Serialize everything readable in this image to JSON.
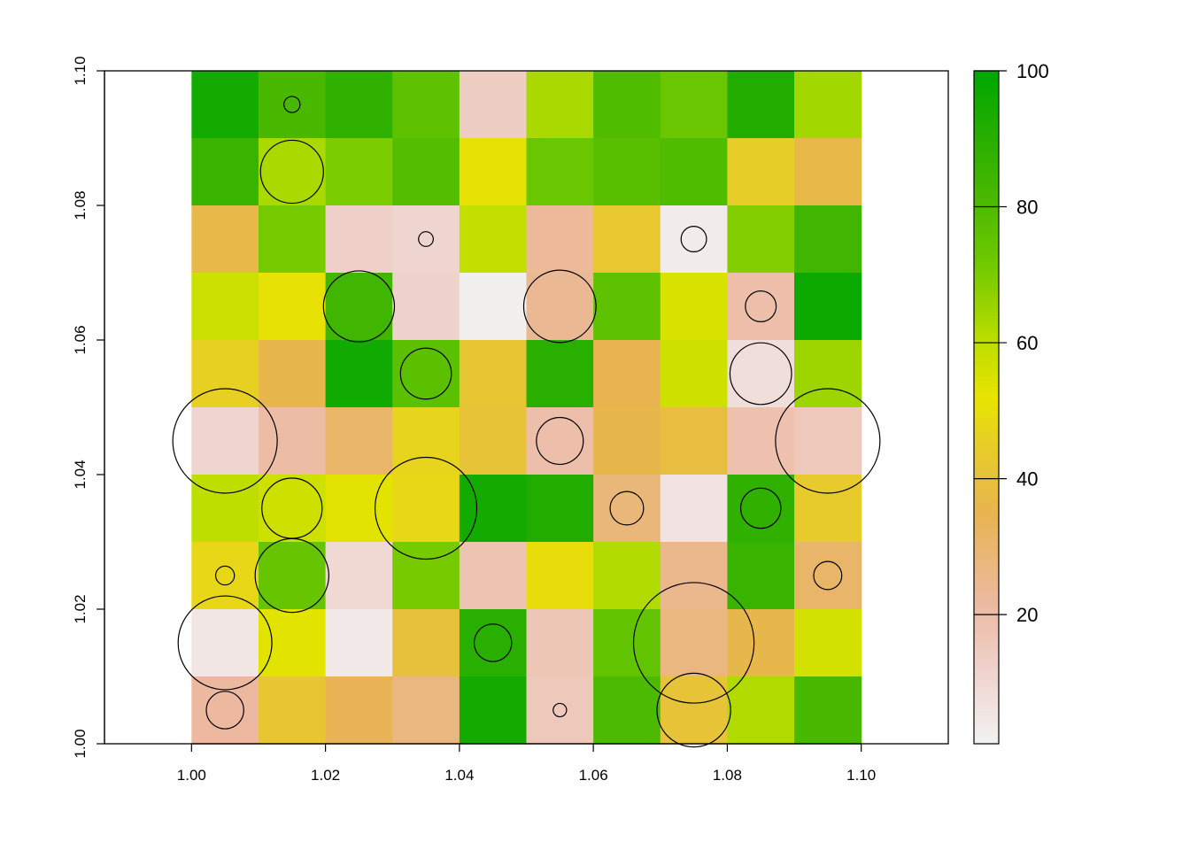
{
  "chart_data": {
    "type": "heatmap",
    "title": "",
    "xlabel": "",
    "ylabel": "",
    "xlim": [
      0.987,
      1.113
    ],
    "ylim": [
      1.0,
      1.1
    ],
    "x_ticks": [
      "1.00",
      "1.02",
      "1.04",
      "1.06",
      "1.08",
      "1.10"
    ],
    "y_ticks": [
      "1.00",
      "1.02",
      "1.04",
      "1.06",
      "1.08",
      "1.10"
    ],
    "grid": false,
    "legend": {
      "position": "right",
      "range": [
        1,
        100
      ],
      "ticks": [
        "20",
        "40",
        "60",
        "80",
        "100"
      ]
    },
    "raster": {
      "x_start": 1.0,
      "y_start": 1.0,
      "cell_size": 0.01,
      "ncols": 10,
      "nrows": 10,
      "rows_top_to_bottom": [
        [
          95,
          82,
          88,
          76,
          14,
          63,
          80,
          73,
          92,
          64
        ],
        [
          86,
          63,
          70,
          79,
          51,
          73,
          78,
          80,
          45,
          37
        ],
        [
          37,
          71,
          13,
          11,
          59,
          23,
          43,
          3,
          69,
          84
        ],
        [
          58,
          51,
          84,
          12,
          2,
          24,
          76,
          55,
          20,
          97
        ],
        [
          46,
          36,
          96,
          77,
          42,
          90,
          35,
          57,
          8,
          65
        ],
        [
          11,
          21,
          31,
          47,
          41,
          20,
          36,
          39,
          19,
          16
        ],
        [
          60,
          57,
          53,
          48,
          95,
          92,
          28,
          6,
          88,
          44
        ],
        [
          48,
          74,
          10,
          71,
          18,
          50,
          62,
          25,
          86,
          31
        ],
        [
          5,
          53,
          4,
          40,
          90,
          17,
          75,
          27,
          36,
          56
        ],
        [
          22,
          42,
          34,
          27,
          95,
          16,
          81,
          41,
          62,
          82
        ]
      ]
    },
    "circles": [
      {
        "x": 1.015,
        "y": 1.095,
        "r": 0.0012
      },
      {
        "x": 1.015,
        "y": 1.085,
        "r": 0.0047
      },
      {
        "x": 1.035,
        "y": 1.075,
        "r": 0.0011
      },
      {
        "x": 1.075,
        "y": 1.075,
        "r": 0.0019
      },
      {
        "x": 1.025,
        "y": 1.065,
        "r": 0.0053
      },
      {
        "x": 1.055,
        "y": 1.065,
        "r": 0.0054
      },
      {
        "x": 1.085,
        "y": 1.065,
        "r": 0.0023
      },
      {
        "x": 1.035,
        "y": 1.055,
        "r": 0.0038
      },
      {
        "x": 1.085,
        "y": 1.055,
        "r": 0.0046
      },
      {
        "x": 1.005,
        "y": 1.045,
        "r": 0.0078
      },
      {
        "x": 1.055,
        "y": 1.045,
        "r": 0.0035
      },
      {
        "x": 1.095,
        "y": 1.045,
        "r": 0.0078
      },
      {
        "x": 1.015,
        "y": 1.035,
        "r": 0.0045
      },
      {
        "x": 1.035,
        "y": 1.035,
        "r": 0.0076
      },
      {
        "x": 1.065,
        "y": 1.035,
        "r": 0.0025
      },
      {
        "x": 1.085,
        "y": 1.035,
        "r": 0.003
      },
      {
        "x": 1.005,
        "y": 1.025,
        "r": 0.0014
      },
      {
        "x": 1.015,
        "y": 1.025,
        "r": 0.0055
      },
      {
        "x": 1.095,
        "y": 1.025,
        "r": 0.0021
      },
      {
        "x": 1.005,
        "y": 1.015,
        "r": 0.007
      },
      {
        "x": 1.045,
        "y": 1.015,
        "r": 0.0028
      },
      {
        "x": 1.075,
        "y": 1.015,
        "r": 0.009
      },
      {
        "x": 1.005,
        "y": 1.005,
        "r": 0.0028
      },
      {
        "x": 1.055,
        "y": 1.005,
        "r": 0.001
      },
      {
        "x": 1.075,
        "y": 1.005,
        "r": 0.0055
      }
    ]
  }
}
